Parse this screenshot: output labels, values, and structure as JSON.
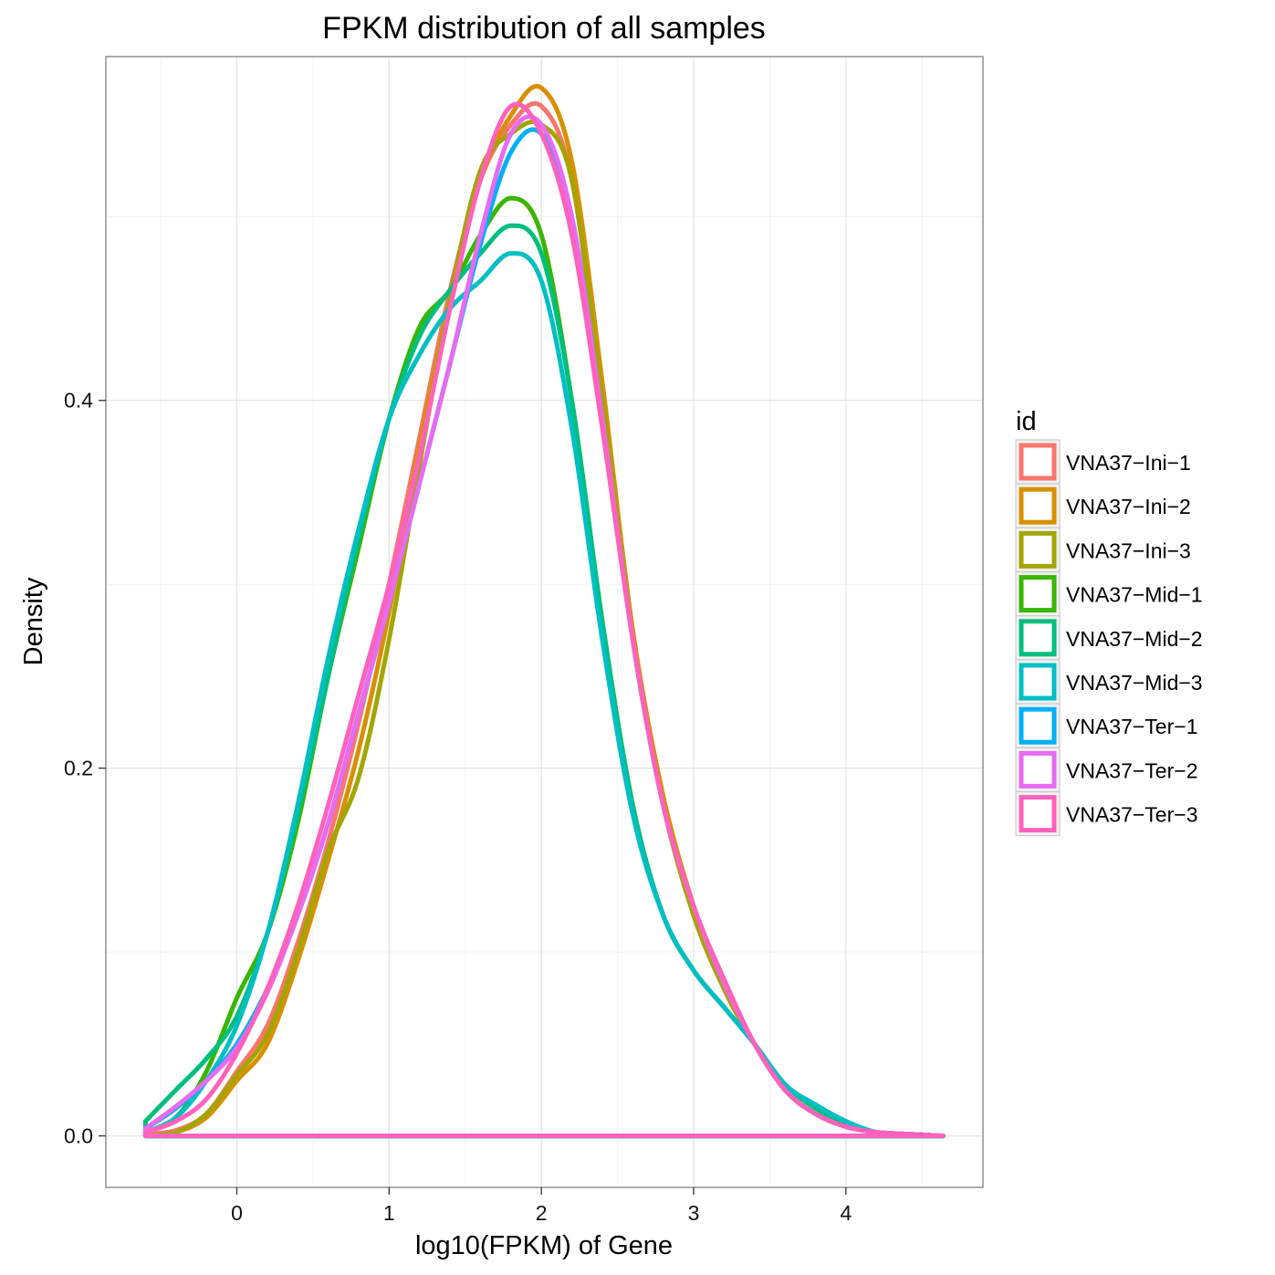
{
  "chart_data": {
    "type": "line",
    "title": "FPKM distribution of all samples",
    "xlabel": "log10(FPKM) of Gene",
    "ylabel": "Density",
    "xlim": [
      -0.86,
      4.9
    ],
    "ylim": [
      -0.028,
      0.587
    ],
    "x_ticks": [
      0,
      1,
      2,
      3,
      4
    ],
    "y_ticks": [
      0.0,
      0.2,
      0.4
    ],
    "grid": true,
    "legend": {
      "title": "id",
      "position": "right"
    },
    "series": [
      {
        "name": "VNA37−Ini−1",
        "color": "#F8766D",
        "x": [
          -0.6,
          -0.4,
          -0.2,
          0.0,
          0.2,
          0.4,
          0.6,
          0.8,
          1.0,
          1.2,
          1.4,
          1.6,
          1.8,
          2.0,
          2.2,
          2.4,
          2.6,
          2.8,
          3.0,
          3.2,
          3.4,
          3.6,
          3.8,
          4.0,
          4.2,
          4.4,
          4.64
        ],
        "y": [
          0.001,
          0.003,
          0.012,
          0.035,
          0.06,
          0.105,
          0.16,
          0.225,
          0.3,
          0.38,
          0.46,
          0.52,
          0.55,
          0.56,
          0.52,
          0.4,
          0.27,
          0.18,
          0.12,
          0.08,
          0.05,
          0.025,
          0.012,
          0.005,
          0.002,
          0.001,
          0.0
        ]
      },
      {
        "name": "VNA37−Ini−2",
        "color": "#D89000",
        "x": [
          -0.6,
          -0.4,
          -0.2,
          0.0,
          0.2,
          0.4,
          0.6,
          0.8,
          1.0,
          1.2,
          1.4,
          1.6,
          1.8,
          2.0,
          2.2,
          2.4,
          2.6,
          2.8,
          3.0,
          3.2,
          3.4,
          3.6,
          3.8,
          4.0,
          4.2,
          4.4,
          4.64
        ],
        "y": [
          0.0,
          0.002,
          0.01,
          0.03,
          0.05,
          0.095,
          0.15,
          0.21,
          0.285,
          0.375,
          0.455,
          0.52,
          0.555,
          0.57,
          0.53,
          0.41,
          0.275,
          0.185,
          0.125,
          0.08,
          0.05,
          0.025,
          0.012,
          0.005,
          0.002,
          0.001,
          0.0
        ]
      },
      {
        "name": "VNA37−Ini−3",
        "color": "#A3A500",
        "x": [
          -0.6,
          -0.4,
          -0.2,
          0.0,
          0.2,
          0.4,
          0.6,
          0.8,
          1.0,
          1.2,
          1.4,
          1.6,
          1.8,
          2.0,
          2.2,
          2.4,
          2.6,
          2.8,
          3.0,
          3.2,
          3.4,
          3.6,
          3.8,
          4.0,
          4.2,
          4.4,
          4.64
        ],
        "y": [
          0.0,
          0.002,
          0.012,
          0.033,
          0.055,
          0.1,
          0.155,
          0.195,
          0.27,
          0.365,
          0.455,
          0.525,
          0.545,
          0.55,
          0.52,
          0.4,
          0.27,
          0.18,
          0.12,
          0.08,
          0.05,
          0.025,
          0.012,
          0.005,
          0.002,
          0.001,
          0.0
        ]
      },
      {
        "name": "VNA37−Mid−1",
        "color": "#39B600",
        "x": [
          -0.6,
          -0.4,
          -0.2,
          0.0,
          0.2,
          0.4,
          0.6,
          0.8,
          1.0,
          1.2,
          1.4,
          1.6,
          1.8,
          2.0,
          2.2,
          2.4,
          2.6,
          2.8,
          3.0,
          3.2,
          3.4,
          3.6,
          3.8,
          4.0,
          4.2,
          4.4,
          4.64
        ],
        "y": [
          0.002,
          0.01,
          0.035,
          0.075,
          0.11,
          0.17,
          0.25,
          0.32,
          0.39,
          0.44,
          0.46,
          0.49,
          0.51,
          0.49,
          0.4,
          0.28,
          0.18,
          0.12,
          0.09,
          0.07,
          0.05,
          0.025,
          0.012,
          0.005,
          0.002,
          0.001,
          0.0
        ]
      },
      {
        "name": "VNA37−Mid−2",
        "color": "#00BF7D",
        "x": [
          -0.6,
          -0.4,
          -0.2,
          0.0,
          0.2,
          0.4,
          0.6,
          0.8,
          1.0,
          1.2,
          1.4,
          1.6,
          1.8,
          2.0,
          2.2,
          2.4,
          2.6,
          2.8,
          3.0,
          3.2,
          3.4,
          3.6,
          3.8,
          4.0,
          4.2,
          4.4,
          4.64
        ],
        "y": [
          0.008,
          0.025,
          0.042,
          0.065,
          0.11,
          0.175,
          0.25,
          0.325,
          0.39,
          0.435,
          0.46,
          0.48,
          0.495,
          0.48,
          0.4,
          0.28,
          0.18,
          0.12,
          0.09,
          0.07,
          0.05,
          0.028,
          0.015,
          0.006,
          0.002,
          0.001,
          0.0
        ]
      },
      {
        "name": "VNA37−Mid−3",
        "color": "#00BFC4",
        "x": [
          -0.6,
          -0.4,
          -0.2,
          0.0,
          0.2,
          0.4,
          0.6,
          0.8,
          1.0,
          1.2,
          1.4,
          1.6,
          1.8,
          2.0,
          2.2,
          2.4,
          2.6,
          2.8,
          3.0,
          3.2,
          3.4,
          3.6,
          3.8,
          4.0,
          4.2,
          4.4,
          4.64
        ],
        "y": [
          0.002,
          0.01,
          0.03,
          0.06,
          0.11,
          0.18,
          0.26,
          0.33,
          0.39,
          0.425,
          0.45,
          0.465,
          0.48,
          0.465,
          0.385,
          0.27,
          0.175,
          0.12,
          0.09,
          0.07,
          0.05,
          0.028,
          0.017,
          0.008,
          0.002,
          0.001,
          0.0
        ]
      },
      {
        "name": "VNA37−Ter−1",
        "color": "#00B0F6",
        "x": [
          -0.6,
          -0.4,
          -0.2,
          0.0,
          0.2,
          0.4,
          0.6,
          0.8,
          1.0,
          1.2,
          1.4,
          1.6,
          1.8,
          2.0,
          2.2,
          2.4,
          2.6,
          2.8,
          3.0,
          3.2,
          3.4,
          3.6,
          3.8,
          4.0,
          4.2,
          4.4,
          4.64
        ],
        "y": [
          0.004,
          0.015,
          0.03,
          0.05,
          0.08,
          0.12,
          0.17,
          0.23,
          0.29,
          0.355,
          0.42,
          0.485,
          0.535,
          0.545,
          0.5,
          0.39,
          0.27,
          0.18,
          0.125,
          0.085,
          0.05,
          0.025,
          0.012,
          0.005,
          0.002,
          0.001,
          0.0
        ]
      },
      {
        "name": "VNA37−Ter−2",
        "color": "#E76BF3",
        "x": [
          -0.6,
          -0.4,
          -0.2,
          0.0,
          0.2,
          0.4,
          0.6,
          0.8,
          1.0,
          1.2,
          1.4,
          1.6,
          1.8,
          2.0,
          2.2,
          2.4,
          2.6,
          2.8,
          3.0,
          3.2,
          3.4,
          3.6,
          3.8,
          4.0,
          4.2,
          4.4,
          4.64
        ],
        "y": [
          0.004,
          0.016,
          0.03,
          0.048,
          0.078,
          0.12,
          0.17,
          0.23,
          0.29,
          0.355,
          0.42,
          0.49,
          0.545,
          0.55,
          0.5,
          0.39,
          0.27,
          0.18,
          0.125,
          0.083,
          0.05,
          0.025,
          0.012,
          0.005,
          0.002,
          0.001,
          0.0
        ]
      },
      {
        "name": "VNA37−Ter−3",
        "color": "#FF62BC",
        "x": [
          -0.6,
          -0.4,
          -0.2,
          0.0,
          0.2,
          0.4,
          0.6,
          0.8,
          1.0,
          1.2,
          1.4,
          1.6,
          1.8,
          2.0,
          2.2,
          2.4,
          2.6,
          2.8,
          3.0,
          3.2,
          3.4,
          3.6,
          3.8,
          4.0,
          4.2,
          4.4,
          4.64
        ],
        "y": [
          0.002,
          0.008,
          0.02,
          0.045,
          0.08,
          0.125,
          0.18,
          0.24,
          0.3,
          0.37,
          0.45,
          0.52,
          0.56,
          0.545,
          0.49,
          0.385,
          0.27,
          0.18,
          0.125,
          0.085,
          0.05,
          0.025,
          0.012,
          0.005,
          0.002,
          0.001,
          0.0
        ]
      }
    ]
  }
}
